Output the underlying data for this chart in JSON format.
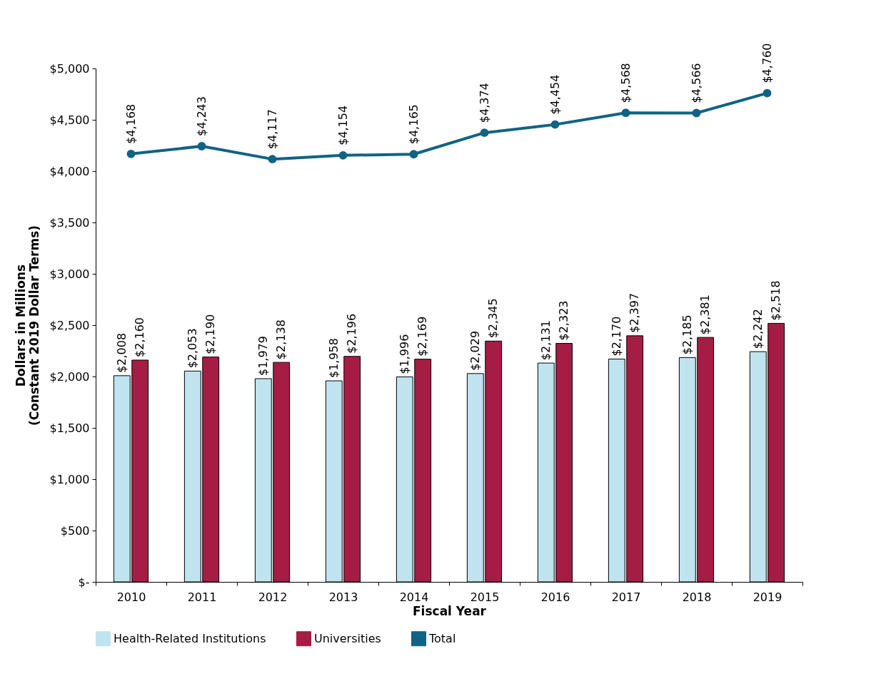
{
  "chart_data": {
    "type": "bar",
    "xlabel": "Fiscal Year",
    "ylabel": "Dollars in Millions\n(Constant 2019 Dollar Terms)",
    "categories": [
      "2010",
      "2011",
      "2012",
      "2013",
      "2014",
      "2015",
      "2016",
      "2017",
      "2018",
      "2019"
    ],
    "series": [
      {
        "name": "Health-Related Institutions",
        "color": "#bfe4ef",
        "values": [
          2008,
          2053,
          1979,
          1958,
          1996,
          2029,
          2131,
          2170,
          2185,
          2242
        ],
        "value_labels": [
          "$2,008",
          "$2,053",
          "$1,979",
          "$1,958",
          "$1,996",
          "$2,029",
          "$2,131",
          "$2,170",
          "$2,185",
          "$2,242"
        ]
      },
      {
        "name": "Universities",
        "color": "#a51c44",
        "values": [
          2160,
          2190,
          2138,
          2196,
          2169,
          2345,
          2323,
          2397,
          2381,
          2518
        ],
        "value_labels": [
          "$2,160",
          "$2,190",
          "$2,138",
          "$2,196",
          "$2,169",
          "$2,345",
          "$2,323",
          "$2,397",
          "$2,381",
          "$2,518"
        ]
      },
      {
        "name": "Total",
        "type": "line",
        "color": "#106383",
        "marker": "circle",
        "values": [
          4168,
          4243,
          4117,
          4154,
          4165,
          4374,
          4454,
          4568,
          4566,
          4760
        ],
        "value_labels": [
          "$4,168",
          "$4,243",
          "$4,117",
          "$4,154",
          "$4,165",
          "$4,374",
          "$4,454",
          "$4,568",
          "$4,566",
          "$4,760"
        ]
      }
    ],
    "ylim": [
      0,
      5000
    ],
    "yticks": [
      {
        "value": 0,
        "label": "$-"
      },
      {
        "value": 500,
        "label": "$500"
      },
      {
        "value": 1000,
        "label": "$1,000"
      },
      {
        "value": 1500,
        "label": "$1,500"
      },
      {
        "value": 2000,
        "label": "$2,000"
      },
      {
        "value": 2500,
        "label": "$2,500"
      },
      {
        "value": 3000,
        "label": "$3,000"
      },
      {
        "value": 3500,
        "label": "$3,500"
      },
      {
        "value": 4000,
        "label": "$4,000"
      },
      {
        "value": 4500,
        "label": "$4,500"
      },
      {
        "value": 5000,
        "label": "$5,000"
      }
    ],
    "grid": false,
    "legend": "bottom"
  }
}
